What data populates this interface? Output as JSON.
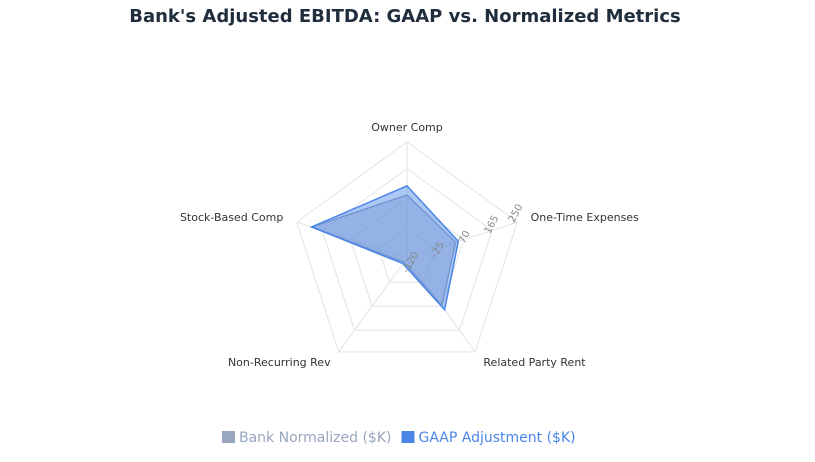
{
  "chart_data": {
    "type": "radar",
    "title": "Bank's Adjusted EBITDA: GAAP vs. Normalized Metrics",
    "categories": [
      "Owner Comp",
      "One-Time Expenses",
      "Related Party Rent",
      "Non-Recurring Rev",
      "Stock-Based Comp"
    ],
    "series": [
      {
        "name": "Bank Normalized ($K)",
        "color": "#98a6c0",
        "values": [
          81,
          43,
          68,
          -104,
          199
        ]
      },
      {
        "name": "GAAP Adjustment ($K)",
        "color": "#4a86e8",
        "values": [
          110,
          52,
          84,
          -98,
          200
        ]
      }
    ],
    "ylim": [
      -120,
      250
    ],
    "yticks": [
      -120,
      -25,
      70,
      165,
      250
    ],
    "grid": true,
    "legend": "bottom"
  }
}
